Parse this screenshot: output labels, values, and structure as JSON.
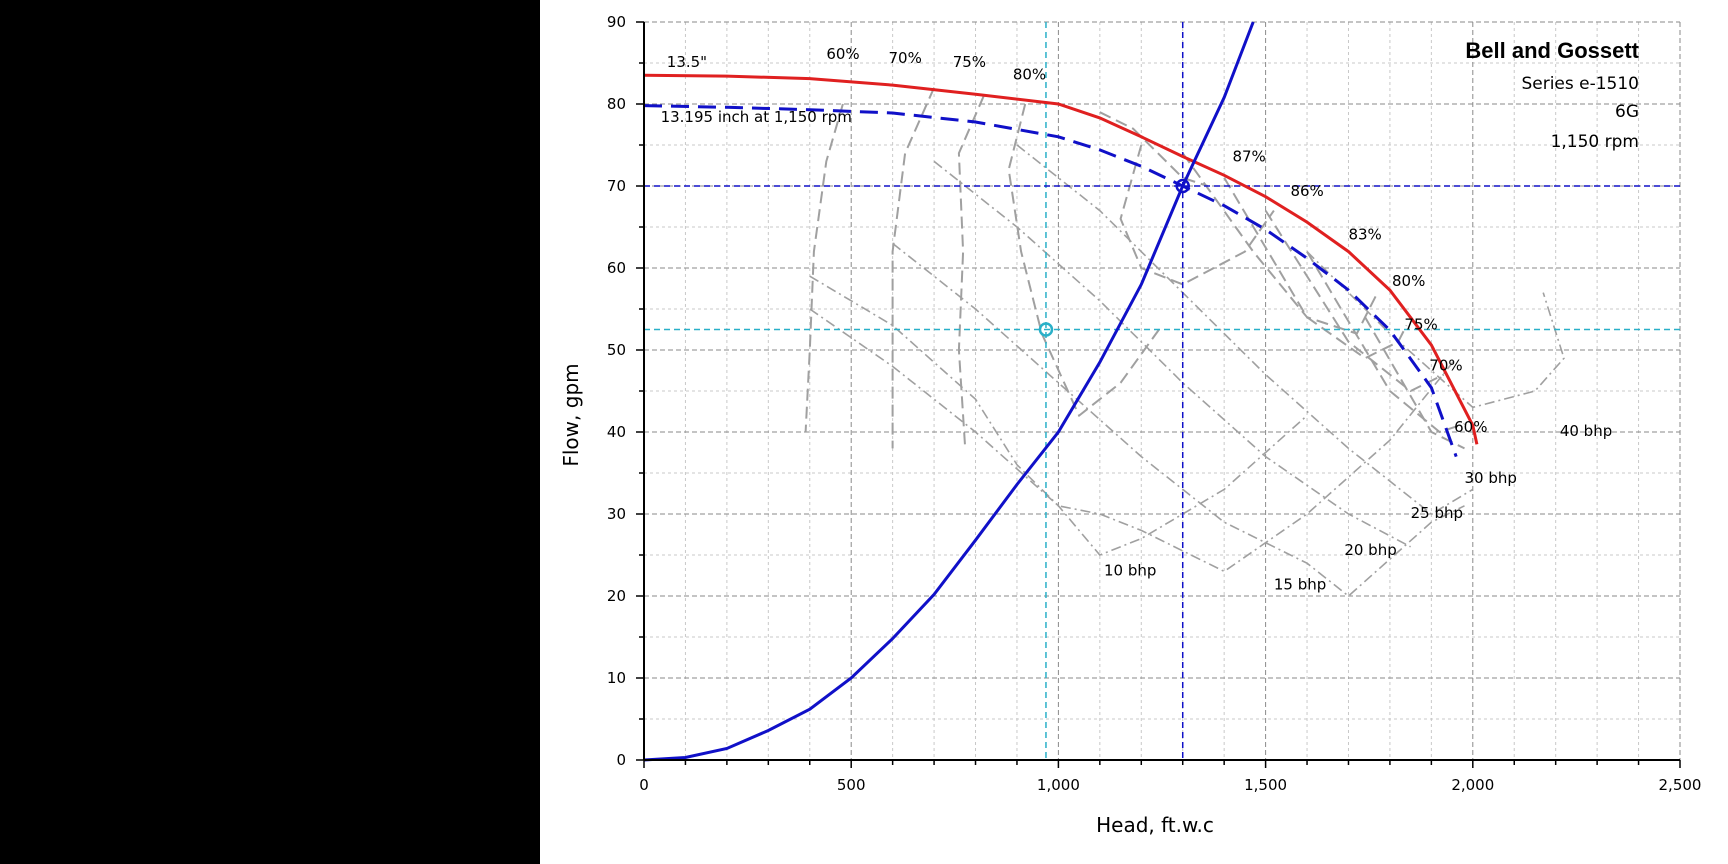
{
  "chart_data": {
    "type": "line",
    "title": "Bell and Gossett",
    "subtitle_lines": [
      "Series e-1510",
      "6G",
      "1,150 rpm"
    ],
    "xlabel": "Head, ft.w.c",
    "ylabel": "Flow, gpm",
    "xlim": [
      0,
      2500
    ],
    "ylim": [
      0,
      90
    ],
    "x_ticks": [
      0,
      500,
      1000,
      1500,
      2000,
      2500
    ],
    "x_tick_labels": [
      "0",
      "500",
      "1,000",
      "1,500",
      "2,000",
      "2,500"
    ],
    "y_ticks": [
      0,
      10,
      20,
      30,
      40,
      50,
      60,
      70,
      80,
      90
    ],
    "y_tick_labels": [
      "0",
      "10",
      "20",
      "30",
      "40",
      "50",
      "60",
      "70",
      "80",
      "90"
    ],
    "grid": true,
    "colors": {
      "impeller_max": "#e02020",
      "operating": "#1010c8",
      "system": "#1010c8",
      "guide": "#2ab0c8",
      "efficiency": "#a0a0a0",
      "bhp": "#a0a0a0"
    },
    "series": [
      {
        "name": "13.5\"",
        "style": "solid",
        "color": "#e02020",
        "points": [
          [
            0,
            83.5
          ],
          [
            200,
            83.4
          ],
          [
            400,
            83.1
          ],
          [
            600,
            82.3
          ],
          [
            800,
            81.2
          ],
          [
            1000,
            80.0
          ],
          [
            1100,
            78.3
          ],
          [
            1200,
            76.0
          ],
          [
            1300,
            73.6
          ],
          [
            1400,
            71.3
          ],
          [
            1500,
            68.7
          ],
          [
            1600,
            65.6
          ],
          [
            1700,
            62.0
          ],
          [
            1800,
            57.3
          ],
          [
            1900,
            50.6
          ],
          [
            2000,
            40.8
          ],
          [
            2010,
            38.5
          ]
        ]
      },
      {
        "name": "13.195 inch at 1,150 rpm",
        "style": "dashed",
        "color": "#1010c8",
        "points": [
          [
            0,
            79.8
          ],
          [
            200,
            79.6
          ],
          [
            400,
            79.3
          ],
          [
            600,
            78.9
          ],
          [
            800,
            77.8
          ],
          [
            1000,
            76.0
          ],
          [
            1100,
            74.4
          ],
          [
            1200,
            72.4
          ],
          [
            1300,
            70.0
          ],
          [
            1400,
            67.6
          ],
          [
            1500,
            64.7
          ],
          [
            1600,
            61.2
          ],
          [
            1700,
            57.3
          ],
          [
            1800,
            52.4
          ],
          [
            1900,
            45.4
          ],
          [
            1960,
            37.0
          ]
        ]
      },
      {
        "name": "",
        "style": "solid",
        "color": "#1010c8",
        "points": [
          [
            0,
            0
          ],
          [
            100,
            0.3
          ],
          [
            200,
            1.4
          ],
          [
            300,
            3.6
          ],
          [
            400,
            6.2
          ],
          [
            500,
            10.0
          ],
          [
            600,
            14.8
          ],
          [
            700,
            20.2
          ],
          [
            800,
            26.8
          ],
          [
            900,
            33.6
          ],
          [
            1000,
            40.0
          ],
          [
            1100,
            48.5
          ],
          [
            1200,
            58.0
          ],
          [
            1300,
            70.0
          ],
          [
            1400,
            80.8
          ],
          [
            1470,
            90.0
          ]
        ]
      }
    ],
    "guide_lines": [
      {
        "type": "vertical",
        "x": 970,
        "color": "#2ab0c8"
      },
      {
        "type": "horizontal",
        "y": 52.5,
        "color": "#2ab0c8"
      },
      {
        "type": "vertical",
        "x": 1300,
        "color": "#1010c8"
      },
      {
        "type": "horizontal",
        "y": 70,
        "color": "#1010c8"
      }
    ],
    "markers": [
      {
        "x": 1300,
        "y": 70,
        "color": "#1010c8"
      },
      {
        "x": 970,
        "y": 52.5,
        "color": "#2ab0c8"
      }
    ],
    "efficiency_lines": [
      {
        "label": "60%",
        "points": [
          [
            480,
            80
          ],
          [
            440,
            73
          ],
          [
            410,
            62
          ],
          [
            400,
            50
          ],
          [
            390,
            40
          ]
        ]
      },
      {
        "label": "70%",
        "points": [
          [
            700,
            82
          ],
          [
            630,
            74
          ],
          [
            600,
            62
          ],
          [
            600,
            50
          ],
          [
            600,
            38
          ]
        ]
      },
      {
        "label": "75%",
        "points": [
          [
            820,
            81
          ],
          [
            760,
            74
          ],
          [
            770,
            62
          ],
          [
            760,
            50
          ],
          [
            775,
            38
          ]
        ]
      },
      {
        "label": "80%",
        "points": [
          [
            920,
            80
          ],
          [
            880,
            72
          ],
          [
            910,
            62
          ],
          [
            960,
            52
          ],
          [
            1050,
            42
          ],
          [
            1150,
            46
          ],
          [
            1250,
            53
          ]
        ]
      },
      {
        "label": "87%",
        "points": [
          [
            1100,
            79
          ],
          [
            1180,
            77
          ],
          [
            1240,
            74
          ],
          [
            1300,
            71
          ],
          [
            1360,
            70
          ]
        ]
      },
      {
        "label": "86%",
        "points": [
          [
            1200,
            75
          ],
          [
            1150,
            66
          ],
          [
            1200,
            60
          ],
          [
            1300,
            58
          ],
          [
            1450,
            62
          ],
          [
            1520,
            67
          ]
        ]
      },
      {
        "label": "83%",
        "points": [
          [
            1300,
            74
          ],
          [
            1470,
            62
          ],
          [
            1600,
            54
          ],
          [
            1720,
            52
          ],
          [
            1770,
            57
          ]
        ]
      },
      {
        "label": "80%",
        "points": [
          [
            1400,
            71
          ],
          [
            1600,
            54
          ],
          [
            1740,
            49
          ],
          [
            1820,
            51
          ],
          [
            1840,
            53
          ]
        ]
      },
      {
        "label": "75%",
        "points": [
          [
            1500,
            67
          ],
          [
            1700,
            51
          ],
          [
            1850,
            45
          ],
          [
            1930,
            47
          ]
        ]
      },
      {
        "label": "70%",
        "points": [
          [
            1600,
            62
          ],
          [
            1800,
            45
          ],
          [
            1920,
            40
          ],
          [
            1980,
            41
          ]
        ]
      },
      {
        "label": "60%",
        "points": [
          [
            1740,
            54
          ],
          [
            1900,
            40
          ],
          [
            1980,
            38
          ]
        ]
      }
    ],
    "bhp_lines": [
      {
        "label": "10 bhp",
        "points": [
          [
            400,
            59
          ],
          [
            600,
            53
          ],
          [
            800,
            44
          ],
          [
            900,
            36
          ],
          [
            1000,
            31
          ],
          [
            1100,
            25
          ],
          [
            1200,
            27
          ],
          [
            1400,
            33
          ],
          [
            1600,
            42
          ]
        ]
      },
      {
        "label": "15 bhp",
        "points": [
          [
            400,
            55
          ],
          [
            600,
            48
          ],
          [
            800,
            40
          ],
          [
            1000,
            31
          ],
          [
            1100,
            30
          ],
          [
            1200,
            28
          ],
          [
            1400,
            23
          ],
          [
            1600,
            30
          ],
          [
            1800,
            39
          ],
          [
            1960,
            49
          ]
        ]
      },
      {
        "label": "20 bhp",
        "points": [
          [
            600,
            63
          ],
          [
            800,
            55
          ],
          [
            1000,
            46
          ],
          [
            1200,
            37
          ],
          [
            1400,
            29
          ],
          [
            1600,
            24
          ],
          [
            1700,
            20
          ],
          [
            1900,
            29
          ],
          [
            1980,
            31
          ]
        ]
      },
      {
        "label": "25 bhp",
        "points": [
          [
            700,
            73
          ],
          [
            900,
            65
          ],
          [
            1100,
            56
          ],
          [
            1300,
            46
          ],
          [
            1500,
            37
          ],
          [
            1700,
            30
          ],
          [
            1850,
            26
          ]
        ]
      },
      {
        "label": "30 bhp",
        "points": [
          [
            900,
            75
          ],
          [
            1100,
            67
          ],
          [
            1300,
            57
          ],
          [
            1500,
            47
          ],
          [
            1700,
            38
          ],
          [
            1900,
            30
          ],
          [
            2000,
            33
          ]
        ]
      },
      {
        "label": "40 bhp",
        "points": [
          [
            1600,
            62
          ],
          [
            1800,
            52
          ],
          [
            2000,
            43
          ],
          [
            2150,
            45
          ],
          [
            2220,
            49
          ],
          [
            2170,
            57
          ]
        ]
      }
    ],
    "annotations": [
      {
        "text": "13.5\"",
        "x": 55,
        "y": 84.5
      },
      {
        "text": "13.195 inch at 1,150 rpm",
        "x": 40,
        "y": 77.8
      },
      {
        "text": "60%",
        "x": 440,
        "y": 85.5
      },
      {
        "text": "70%",
        "x": 590,
        "y": 85
      },
      {
        "text": "75%",
        "x": 745,
        "y": 84.5
      },
      {
        "text": "80%",
        "x": 890,
        "y": 83
      },
      {
        "text": "87%",
        "x": 1420,
        "y": 73
      },
      {
        "text": "86%",
        "x": 1560,
        "y": 68.8
      },
      {
        "text": "83%",
        "x": 1700,
        "y": 63.5
      },
      {
        "text": "80%",
        "x": 1805,
        "y": 57.8
      },
      {
        "text": "75%",
        "x": 1835,
        "y": 52.5
      },
      {
        "text": "70%",
        "x": 1895,
        "y": 47.5
      },
      {
        "text": "60%",
        "x": 1955,
        "y": 40
      },
      {
        "text": "40 bhp",
        "x": 2210,
        "y": 39.5
      },
      {
        "text": "30 bhp",
        "x": 1980,
        "y": 33.8
      },
      {
        "text": "25 bhp",
        "x": 1850,
        "y": 29.5
      },
      {
        "text": "20 bhp",
        "x": 1690,
        "y": 25
      },
      {
        "text": "15 bhp",
        "x": 1520,
        "y": 20.8
      },
      {
        "text": "10 bhp",
        "x": 1110,
        "y": 22.5
      }
    ]
  }
}
